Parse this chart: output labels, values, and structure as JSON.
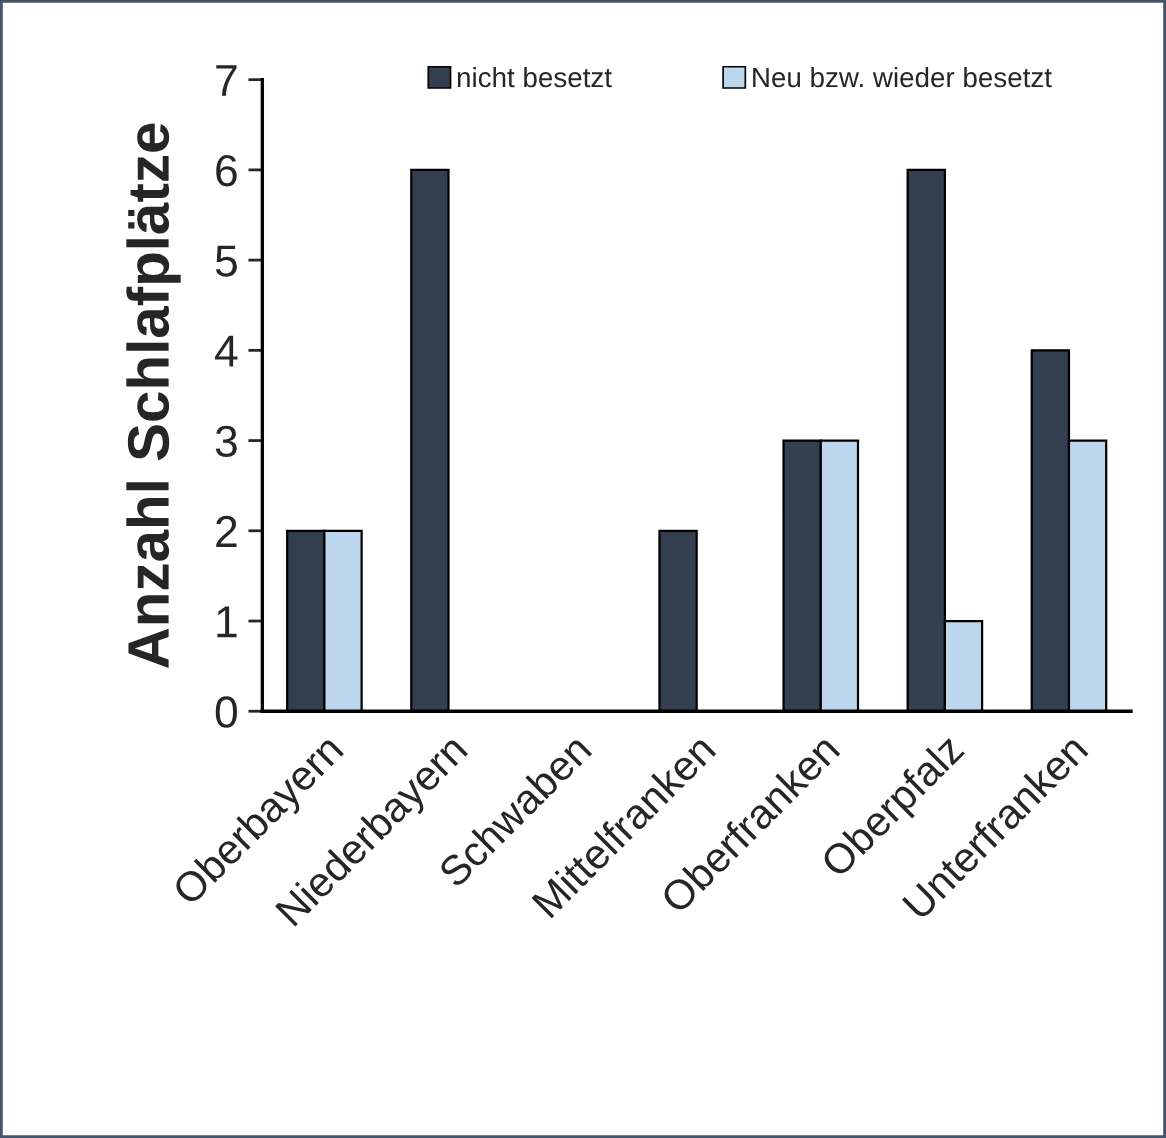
{
  "chart_data": {
    "type": "bar",
    "ylabel": "Anzahl Schlafplätze",
    "categories": [
      "Oberbayern",
      "Niederbayern",
      "Schwaben",
      "Mittelfranken",
      "Oberfranken",
      "Oberpfalz",
      "Unterfranken"
    ],
    "series": [
      {
        "name": "nicht besetzt",
        "color": "#333f4f",
        "values": [
          2,
          6,
          0,
          2,
          3,
          6,
          4
        ]
      },
      {
        "name": "Neu bzw. wieder besetzt",
        "color": "#bdd7ee",
        "values": [
          2,
          0,
          0,
          0,
          3,
          1,
          3
        ]
      }
    ],
    "ylim": [
      0,
      7
    ],
    "yticks": [
      0,
      1,
      2,
      3,
      4,
      5,
      6,
      7
    ],
    "grid": false,
    "legend": "top"
  }
}
